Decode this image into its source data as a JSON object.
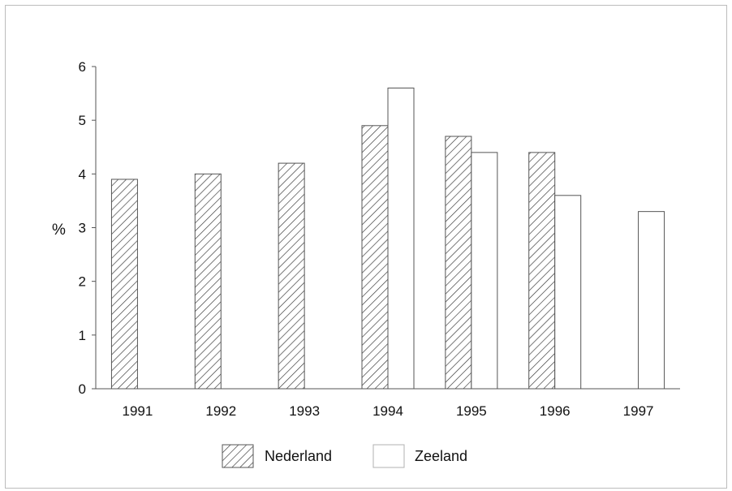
{
  "chart_data": {
    "type": "bar",
    "title": "",
    "xlabel": "",
    "ylabel": "%",
    "ylim": [
      0,
      6
    ],
    "yticks": [
      "0",
      "1",
      "2",
      "3",
      "4",
      "5",
      "6"
    ],
    "categories": [
      "1991",
      "1992",
      "1993",
      "1994",
      "1995",
      "1996",
      "1997"
    ],
    "series": [
      {
        "name": "Nederland",
        "values": [
          3.9,
          4.0,
          4.2,
          4.9,
          4.7,
          4.4,
          null
        ],
        "fill": "hatched"
      },
      {
        "name": "Zeeland",
        "values": [
          null,
          null,
          null,
          5.6,
          4.4,
          3.6,
          3.3
        ],
        "fill": "white"
      }
    ],
    "legend_position": "bottom",
    "grid": false,
    "colors": {
      "axis": "#555555",
      "bar_outline": "#555555",
      "hatch": "#333333",
      "frame": "#bcbcbc"
    }
  }
}
